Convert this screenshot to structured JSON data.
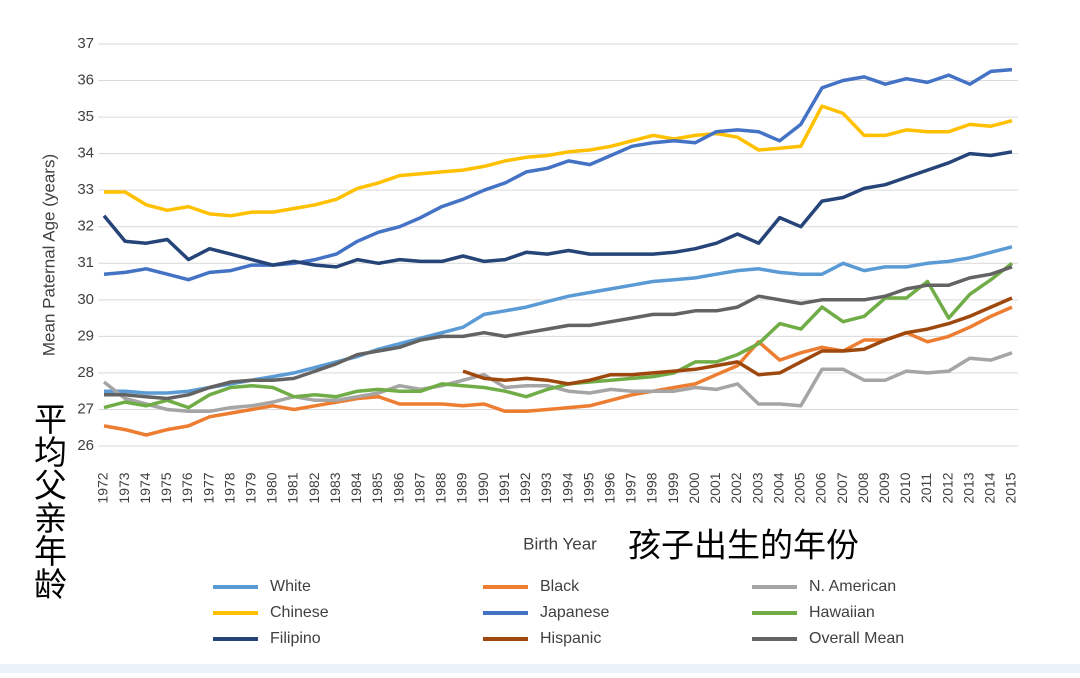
{
  "chart_data": {
    "type": "line",
    "y_label": "Mean Paternal Age (years)",
    "x_label": "Birth Year",
    "y_annotation": "平均父亲年龄",
    "x_annotation": "孩子出生的年份",
    "x": [
      1972,
      1973,
      1974,
      1975,
      1976,
      1977,
      1978,
      1979,
      1980,
      1981,
      1982,
      1983,
      1984,
      1985,
      1986,
      1987,
      1988,
      1989,
      1990,
      1991,
      1992,
      1993,
      1994,
      1995,
      1996,
      1997,
      1998,
      1999,
      2000,
      2001,
      2002,
      2003,
      2004,
      2005,
      2006,
      2007,
      2008,
      2009,
      2010,
      2011,
      2012,
      2013,
      2014,
      2015
    ],
    "xlim": [
      1972,
      2015
    ],
    "ylim": [
      26,
      37
    ],
    "yticks": [
      26,
      27,
      28,
      29,
      30,
      31,
      32,
      33,
      34,
      35,
      36,
      37
    ],
    "grid": true,
    "legend": "bottom",
    "series": [
      {
        "name": "White",
        "color": "#5b9bd5",
        "values": [
          27.5,
          27.5,
          27.45,
          27.45,
          27.5,
          27.6,
          27.7,
          27.8,
          27.9,
          28.0,
          28.15,
          28.3,
          28.45,
          28.65,
          28.8,
          28.95,
          29.1,
          29.25,
          29.6,
          29.7,
          29.8,
          29.95,
          30.1,
          30.2,
          30.3,
          30.4,
          30.5,
          30.55,
          30.6,
          30.7,
          30.8,
          30.85,
          30.75,
          30.7,
          30.7,
          31.0,
          30.8,
          30.9,
          30.9,
          31.0,
          31.05,
          31.15,
          31.3,
          31.45
        ]
      },
      {
        "name": "Black",
        "color": "#ed7d31",
        "values": [
          26.55,
          26.45,
          26.3,
          26.45,
          26.55,
          26.8,
          26.9,
          27.0,
          27.1,
          27.0,
          27.1,
          27.2,
          27.3,
          27.35,
          27.15,
          27.15,
          27.15,
          27.1,
          27.15,
          26.95,
          26.95,
          27.0,
          27.05,
          27.1,
          27.25,
          27.4,
          27.5,
          27.6,
          27.7,
          27.95,
          28.2,
          28.85,
          28.35,
          28.55,
          28.7,
          28.6,
          28.9,
          28.9,
          29.1,
          28.85,
          29.0,
          29.25,
          29.55,
          29.8
        ]
      },
      {
        "name": "N. American",
        "color": "#a5a5a5",
        "values": [
          27.75,
          27.3,
          27.15,
          27.0,
          26.95,
          26.95,
          27.05,
          27.1,
          27.2,
          27.35,
          27.25,
          27.25,
          27.35,
          27.45,
          27.65,
          27.55,
          27.65,
          27.8,
          27.95,
          27.6,
          27.65,
          27.65,
          27.5,
          27.45,
          27.55,
          27.5,
          27.5,
          27.5,
          27.6,
          27.55,
          27.7,
          27.15,
          27.15,
          27.1,
          28.1,
          28.1,
          27.8,
          27.8,
          28.05,
          28.0,
          28.05,
          28.4,
          28.35,
          28.55
        ]
      },
      {
        "name": "Chinese",
        "color": "#ffc000",
        "values": [
          32.95,
          32.95,
          32.6,
          32.45,
          32.55,
          32.35,
          32.3,
          32.4,
          32.4,
          32.5,
          32.6,
          32.75,
          33.05,
          33.2,
          33.4,
          33.45,
          33.5,
          33.55,
          33.65,
          33.8,
          33.9,
          33.95,
          34.05,
          34.1,
          34.2,
          34.35,
          34.5,
          34.4,
          34.5,
          34.55,
          34.45,
          34.1,
          34.15,
          34.2,
          35.3,
          35.1,
          34.5,
          34.5,
          34.65,
          34.6,
          34.6,
          34.8,
          34.75,
          34.9
        ]
      },
      {
        "name": "Japanese",
        "color": "#4472c4",
        "values": [
          30.7,
          30.75,
          30.85,
          30.7,
          30.55,
          30.75,
          30.8,
          30.95,
          30.95,
          31.0,
          31.1,
          31.25,
          31.6,
          31.85,
          32.0,
          32.25,
          32.55,
          32.75,
          33.0,
          33.2,
          33.5,
          33.6,
          33.8,
          33.7,
          33.95,
          34.2,
          34.3,
          34.35,
          34.3,
          34.6,
          34.65,
          34.6,
          34.35,
          34.8,
          35.8,
          36.0,
          36.1,
          35.9,
          36.05,
          35.95,
          36.15,
          35.9,
          36.25,
          36.3
        ]
      },
      {
        "name": "Hawaiian",
        "color": "#70ad47",
        "values": [
          27.05,
          27.2,
          27.1,
          27.25,
          27.05,
          27.4,
          27.6,
          27.65,
          27.6,
          27.35,
          27.4,
          27.35,
          27.5,
          27.55,
          27.5,
          27.5,
          27.7,
          27.65,
          27.6,
          27.5,
          27.35,
          27.55,
          27.7,
          27.75,
          27.8,
          27.85,
          27.9,
          28.0,
          28.3,
          28.3,
          28.5,
          28.8,
          29.35,
          29.2,
          29.8,
          29.4,
          29.55,
          30.05,
          30.05,
          30.5,
          29.5,
          30.15,
          30.55,
          31.0
        ]
      },
      {
        "name": "Filipino",
        "color": "#264478",
        "values": [
          32.3,
          31.6,
          31.55,
          31.65,
          31.1,
          31.4,
          31.25,
          31.1,
          30.95,
          31.05,
          30.95,
          30.9,
          31.1,
          31.0,
          31.1,
          31.05,
          31.05,
          31.2,
          31.05,
          31.1,
          31.3,
          31.25,
          31.35,
          31.25,
          31.25,
          31.25,
          31.25,
          31.3,
          31.4,
          31.55,
          31.8,
          31.55,
          32.25,
          32.0,
          32.7,
          32.8,
          33.05,
          33.15,
          33.35,
          33.55,
          33.75,
          34.0,
          33.95,
          34.05
        ]
      },
      {
        "name": "Hispanic",
        "color": "#9e480e",
        "values": [
          null,
          null,
          null,
          null,
          null,
          null,
          null,
          null,
          null,
          null,
          null,
          null,
          null,
          null,
          null,
          null,
          null,
          28.05,
          27.85,
          27.8,
          27.85,
          27.8,
          27.7,
          27.8,
          27.95,
          27.95,
          28.0,
          28.05,
          28.1,
          28.2,
          28.3,
          27.95,
          28.0,
          28.3,
          28.6,
          28.6,
          28.65,
          28.9,
          29.1,
          29.2,
          29.35,
          29.55,
          29.8,
          30.05
        ]
      },
      {
        "name": "Overall Mean",
        "color": "#636363",
        "values": [
          27.4,
          27.4,
          27.35,
          27.3,
          27.4,
          27.6,
          27.75,
          27.8,
          27.8,
          27.85,
          28.05,
          28.25,
          28.5,
          28.6,
          28.7,
          28.9,
          29.0,
          29.0,
          29.1,
          29.0,
          29.1,
          29.2,
          29.3,
          29.3,
          29.4,
          29.5,
          29.6,
          29.6,
          29.7,
          29.7,
          29.8,
          30.1,
          30.0,
          29.9,
          30.0,
          30.0,
          30.0,
          30.1,
          30.3,
          30.4,
          30.4,
          30.6,
          30.7,
          30.9
        ]
      }
    ]
  }
}
